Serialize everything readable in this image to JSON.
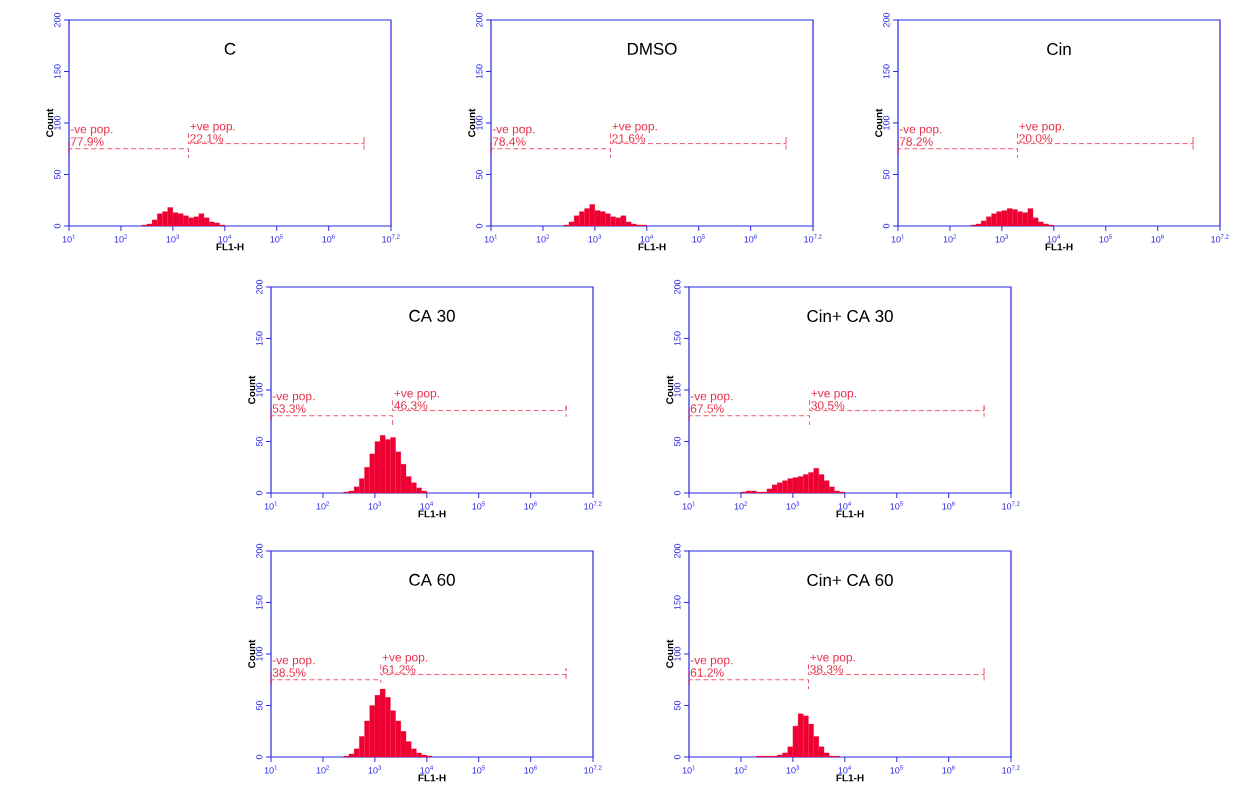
{
  "chart_data": [
    {
      "type": "histogram",
      "title": "C",
      "xlabel": "FL1-H",
      "ylabel": "Count",
      "log": "x",
      "xlim": [
        10,
        15848932
      ],
      "ylim": [
        0,
        200
      ],
      "xticks": [
        {
          "value": 10,
          "label": "10$^{1}$"
        },
        {
          "value": 100,
          "label": "10$^{2}$"
        },
        {
          "value": 1000,
          "label": "10$^{3}$"
        },
        {
          "value": 10000,
          "label": "10$^{4}$"
        },
        {
          "value": 100000,
          "label": "10$^{5}$"
        },
        {
          "value": 1000000,
          "label": "10$^{6}$"
        },
        {
          "value": 15848932,
          "label": "10$^{7.2}$"
        }
      ],
      "yticks": [
        0,
        50,
        100,
        150,
        200
      ],
      "color": "#ee0033",
      "bins": [
        251,
        316,
        398,
        501,
        631,
        794,
        1000,
        1259,
        1585,
        1995,
        2512,
        3162,
        3981,
        5012,
        6310,
        7943,
        10000
      ],
      "values": [
        1,
        2,
        6,
        12,
        14,
        18,
        13,
        12,
        10,
        8,
        9,
        12,
        8,
        4,
        3,
        1
      ],
      "series": [
        {
          "type": "line",
          "line_style": "dashed",
          "color": "#e8304a",
          "x": [
            10,
            10,
            10,
            2000,
            2000
          ],
          "values": [
            82,
            70,
            75,
            75,
            66
          ]
        },
        {
          "type": "line",
          "line_style": "dashed",
          "color": "#e8304a",
          "x": [
            2000,
            2000,
            4800000,
            4800000,
            4800000
          ],
          "values": [
            90,
            80,
            80,
            86,
            74
          ]
        }
      ],
      "annotations": [
        "-ve pop.",
        "77.9%",
        "+ve pop.",
        "22.1%"
      ]
    },
    {
      "type": "histogram",
      "title": "DMSO",
      "xlabel": "FL1-H",
      "ylabel": "Count",
      "log": "x",
      "xlim": [
        10,
        15848932
      ],
      "ylim": [
        0,
        200
      ],
      "xticks": [
        {
          "value": 10,
          "label": "10$^{1}$"
        },
        {
          "value": 100,
          "label": "10$^{2}$"
        },
        {
          "value": 1000,
          "label": "10$^{3}$"
        },
        {
          "value": 10000,
          "label": "10$^{4}$"
        },
        {
          "value": 100000,
          "label": "10$^{5}$"
        },
        {
          "value": 1000000,
          "label": "10$^{6}$"
        },
        {
          "value": 15848932,
          "label": "10$^{7.2}$"
        }
      ],
      "yticks": [
        0,
        50,
        100,
        150,
        200
      ],
      "color": "#ee0033",
      "bins": [
        251,
        316,
        398,
        501,
        631,
        794,
        1000,
        1259,
        1585,
        1995,
        2512,
        3162,
        3981,
        5012,
        6310,
        7943,
        10000
      ],
      "values": [
        1,
        4,
        10,
        14,
        17,
        21,
        15,
        14,
        12,
        9,
        8,
        10,
        4,
        2,
        1,
        1
      ],
      "series": [
        {
          "type": "line",
          "line_style": "dashed",
          "color": "#e8304a",
          "x": [
            10,
            10,
            10,
            2000,
            2000
          ],
          "values": [
            82,
            70,
            75,
            75,
            66
          ]
        },
        {
          "type": "line",
          "line_style": "dashed",
          "color": "#e8304a",
          "x": [
            2000,
            2000,
            4800000,
            4800000,
            4800000
          ],
          "values": [
            90,
            80,
            80,
            86,
            74
          ]
        }
      ],
      "annotations": [
        "-ve pop.",
        "78.4%",
        "+ve pop.",
        "21.6%"
      ]
    },
    {
      "type": "histogram",
      "title": "Cin",
      "xlabel": "FL1-H",
      "ylabel": "Count",
      "log": "x",
      "xlim": [
        10,
        15848932
      ],
      "ylim": [
        0,
        200
      ],
      "xticks": [
        {
          "value": 10,
          "label": "10$^{1}$"
        },
        {
          "value": 100,
          "label": "10$^{2}$"
        },
        {
          "value": 1000,
          "label": "10$^{3}$"
        },
        {
          "value": 10000,
          "label": "10$^{4}$"
        },
        {
          "value": 100000,
          "label": "10$^{5}$"
        },
        {
          "value": 1000000,
          "label": "10$^{6}$"
        },
        {
          "value": 15848932,
          "label": "10$^{7.2}$"
        }
      ],
      "yticks": [
        0,
        50,
        100,
        150,
        200
      ],
      "color": "#ee0033",
      "bins": [
        251,
        316,
        398,
        501,
        631,
        794,
        1000,
        1259,
        1585,
        1995,
        2512,
        3162,
        3981,
        5012,
        6310,
        7943,
        10000
      ],
      "values": [
        1,
        2,
        5,
        9,
        12,
        14,
        15,
        17,
        16,
        14,
        13,
        17,
        8,
        4,
        2,
        1
      ],
      "series": [
        {
          "type": "line",
          "line_style": "dashed",
          "color": "#e8304a",
          "x": [
            10,
            10,
            10,
            2000,
            2000
          ],
          "values": [
            82,
            70,
            75,
            75,
            66
          ]
        },
        {
          "type": "line",
          "line_style": "dashed",
          "color": "#e8304a",
          "x": [
            2000,
            2000,
            4800000,
            4800000,
            4800000
          ],
          "values": [
            90,
            80,
            80,
            86,
            74
          ]
        }
      ],
      "annotations": [
        "-ve pop.",
        "78.2%",
        "+ve pop.",
        "20.0%"
      ]
    },
    {
      "type": "histogram",
      "title": "CA 30",
      "xlabel": "FL1-H",
      "ylabel": "Count",
      "log": "x",
      "xlim": [
        10,
        15848932
      ],
      "ylim": [
        0,
        200
      ],
      "xticks": [
        {
          "value": 10,
          "label": "10$^{1}$"
        },
        {
          "value": 100,
          "label": "10$^{2}$"
        },
        {
          "value": 1000,
          "label": "10$^{3}$"
        },
        {
          "value": 10000,
          "label": "10$^{4}$"
        },
        {
          "value": 100000,
          "label": "10$^{5}$"
        },
        {
          "value": 1000000,
          "label": "10$^{6}$"
        },
        {
          "value": 15848932,
          "label": "10$^{7.2}$"
        }
      ],
      "yticks": [
        0,
        50,
        100,
        150,
        200
      ],
      "color": "#ee0033",
      "bins": [
        251,
        316,
        398,
        501,
        631,
        794,
        1000,
        1259,
        1585,
        1995,
        2512,
        3162,
        3981,
        5012,
        6310,
        7943,
        10000
      ],
      "values": [
        1,
        2,
        6,
        14,
        25,
        38,
        50,
        56,
        52,
        54,
        40,
        28,
        16,
        10,
        5,
        2
      ],
      "series": [
        {
          "type": "line",
          "line_style": "dashed",
          "color": "#e8304a",
          "x": [
            10,
            10,
            10,
            2200,
            2200
          ],
          "values": [
            82,
            70,
            75,
            75,
            66
          ]
        },
        {
          "type": "line",
          "line_style": "dashed",
          "color": "#e8304a",
          "x": [
            2200,
            2200,
            4800000,
            4800000,
            4800000
          ],
          "values": [
            90,
            80,
            80,
            86,
            74
          ]
        }
      ],
      "annotations": [
        "-ve pop.",
        "53.3%",
        "+ve pop.",
        "46.3%"
      ]
    },
    {
      "type": "histogram",
      "title": "Cin+ CA 30",
      "xlabel": "FL1-H",
      "ylabel": "Count",
      "log": "x",
      "xlim": [
        10,
        15848932
      ],
      "ylim": [
        0,
        200
      ],
      "xticks": [
        {
          "value": 10,
          "label": "10$^{1}$"
        },
        {
          "value": 100,
          "label": "10$^{2}$"
        },
        {
          "value": 1000,
          "label": "10$^{3}$"
        },
        {
          "value": 10000,
          "label": "10$^{4}$"
        },
        {
          "value": 100000,
          "label": "10$^{5}$"
        },
        {
          "value": 1000000,
          "label": "10$^{6}$"
        },
        {
          "value": 15848932,
          "label": "10$^{7.2}$"
        }
      ],
      "yticks": [
        0,
        50,
        100,
        150,
        200
      ],
      "color": "#ee0033",
      "bins": [
        100,
        126,
        158,
        200,
        251,
        316,
        398,
        501,
        631,
        794,
        1000,
        1259,
        1585,
        1995,
        2512,
        3162,
        3981,
        5012,
        6310,
        7943,
        10000
      ],
      "values": [
        1,
        2,
        2,
        1,
        1,
        4,
        8,
        10,
        12,
        14,
        15,
        16,
        18,
        20,
        24,
        18,
        12,
        6,
        2,
        1
      ],
      "series": [
        {
          "type": "line",
          "line_style": "dashed",
          "color": "#e8304a",
          "x": [
            10,
            10,
            10,
            2100,
            2100
          ],
          "values": [
            82,
            70,
            75,
            75,
            66
          ]
        },
        {
          "type": "line",
          "line_style": "dashed",
          "color": "#e8304a",
          "x": [
            2100,
            2100,
            4800000,
            4800000,
            4800000
          ],
          "values": [
            90,
            80,
            80,
            86,
            74
          ]
        }
      ],
      "annotations": [
        "-ve pop.",
        "67.5%",
        "+ve pop.",
        "30.5%"
      ]
    },
    {
      "type": "histogram",
      "title": "CA 60",
      "xlabel": "FL1-H",
      "ylabel": "Count",
      "log": "x",
      "xlim": [
        10,
        15848932
      ],
      "ylim": [
        0,
        200
      ],
      "xticks": [
        {
          "value": 10,
          "label": "10$^{1}$"
        },
        {
          "value": 100,
          "label": "10$^{2}$"
        },
        {
          "value": 1000,
          "label": "10$^{3}$"
        },
        {
          "value": 10000,
          "label": "10$^{4}$"
        },
        {
          "value": 100000,
          "label": "10$^{5}$"
        },
        {
          "value": 1000000,
          "label": "10$^{6}$"
        },
        {
          "value": 15848932,
          "label": "10$^{7.2}$"
        }
      ],
      "yticks": [
        0,
        50,
        100,
        150,
        200
      ],
      "color": "#ee0033",
      "bins": [
        251,
        316,
        398,
        501,
        631,
        794,
        1000,
        1259,
        1585,
        1995,
        2512,
        3162,
        3981,
        5012,
        6310,
        7943,
        10000,
        12589
      ],
      "values": [
        1,
        3,
        8,
        20,
        35,
        50,
        60,
        66,
        58,
        45,
        35,
        25,
        15,
        8,
        4,
        2,
        1
      ],
      "series": [
        {
          "type": "line",
          "line_style": "dashed",
          "color": "#e8304a",
          "x": [
            10,
            10,
            10,
            1300,
            1300
          ],
          "values": [
            82,
            70,
            75,
            75,
            72
          ]
        },
        {
          "type": "line",
          "line_style": "dashed",
          "color": "#e8304a",
          "x": [
            1300,
            1300,
            4800000,
            4800000,
            4800000
          ],
          "values": [
            90,
            80,
            80,
            86,
            75
          ]
        }
      ],
      "annotations": [
        "-ve pop.",
        "38.5%",
        "+ve pop.",
        "61.2%"
      ]
    },
    {
      "type": "histogram",
      "title": "Cin+ CA 60",
      "xlabel": "FL1-H",
      "ylabel": "Count",
      "log": "x",
      "xlim": [
        10,
        15848932
      ],
      "ylim": [
        0,
        200
      ],
      "xticks": [
        {
          "value": 10,
          "label": "10$^{1}$"
        },
        {
          "value": 100,
          "label": "10$^{2}$"
        },
        {
          "value": 1000,
          "label": "10$^{3}$"
        },
        {
          "value": 10000,
          "label": "10$^{4}$"
        },
        {
          "value": 100000,
          "label": "10$^{5}$"
        },
        {
          "value": 1000000,
          "label": "10$^{6}$"
        },
        {
          "value": 15848932,
          "label": "10$^{7.2}$"
        }
      ],
      "yticks": [
        0,
        50,
        100,
        150,
        200
      ],
      "color": "#ee0033",
      "bins": [
        200,
        251,
        316,
        398,
        501,
        631,
        794,
        1000,
        1259,
        1585,
        1995,
        2512,
        3162,
        3981,
        5012,
        6310,
        7943
      ],
      "values": [
        1,
        1,
        1,
        1,
        2,
        4,
        10,
        30,
        42,
        40,
        32,
        20,
        10,
        4,
        1,
        1
      ],
      "series": [
        {
          "type": "line",
          "line_style": "dashed",
          "color": "#e8304a",
          "x": [
            10,
            10,
            10,
            2000,
            2000
          ],
          "values": [
            82,
            70,
            75,
            75,
            66
          ]
        },
        {
          "type": "line",
          "line_style": "dashed",
          "color": "#e8304a",
          "x": [
            2000,
            2000,
            4800000,
            4800000,
            4800000
          ],
          "values": [
            90,
            80,
            80,
            86,
            74
          ]
        }
      ],
      "annotations": [
        "-ve pop.",
        "61.2%",
        "+ve pop.",
        "38.3%"
      ]
    }
  ]
}
